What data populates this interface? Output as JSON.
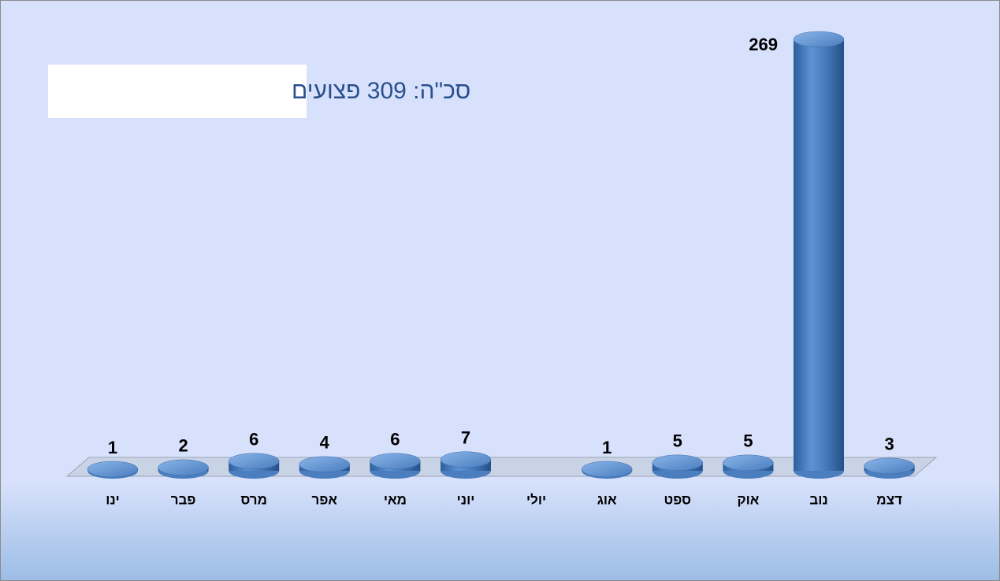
{
  "chart_data": {
    "type": "bar",
    "annotation": "סכ\"ה: 309 פצועים",
    "categories": [
      "ינו",
      "פבר",
      "מרס",
      "אפר",
      "מאי",
      "יוני",
      "יולי",
      "אוג",
      "ספט",
      "אוק",
      "נוב",
      "דצמ"
    ],
    "values": [
      1,
      2,
      6,
      4,
      6,
      7,
      null,
      1,
      5,
      5,
      269,
      3
    ],
    "color": "#4a7ebf"
  }
}
